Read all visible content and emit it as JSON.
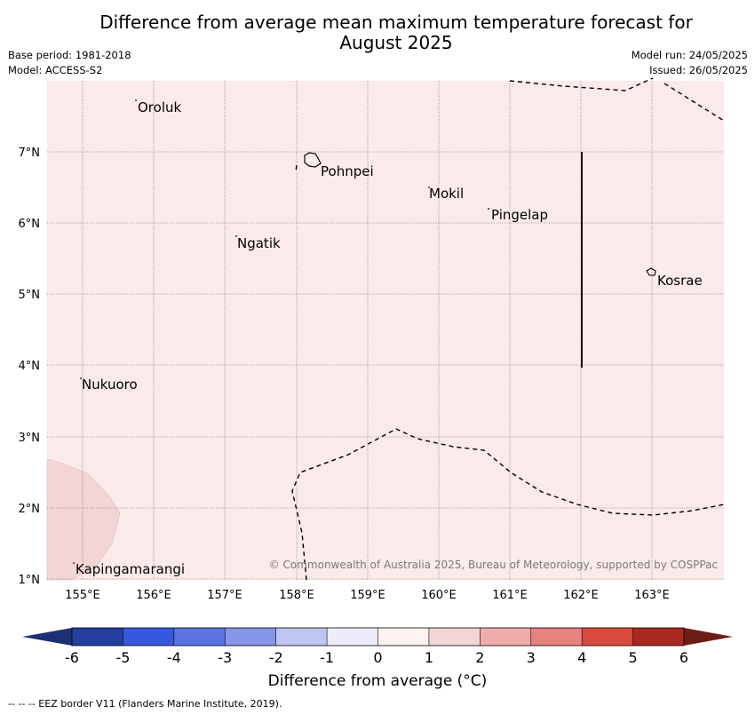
{
  "title_line1": "Difference from average mean maximum temperature forecast for",
  "title_line2": "August 2025",
  "base_period": "Base period: 1981-2018",
  "model": "Model: ACCESS-S2",
  "model_run": "Model run: 24/05/2025",
  "issued": "Issued: 26/05/2025",
  "copyright": "© Commonwealth of Australia 2025, Bureau of Meteorology, supported by COSPPac",
  "map": {
    "lon_labels": [
      "155°E",
      "156°E",
      "157°E",
      "158°E",
      "159°E",
      "160°E",
      "161°E",
      "162°E",
      "163°E"
    ],
    "lat_labels": [
      "7°N",
      "6°N",
      "5°N",
      "4°N",
      "3°N",
      "2°N",
      "1°N"
    ],
    "places": [
      {
        "name": "Oroluk"
      },
      {
        "name": "Pohnpei"
      },
      {
        "name": "Mokil"
      },
      {
        "name": "Pingelap"
      },
      {
        "name": "Ngatik"
      },
      {
        "name": "Kosrae"
      },
      {
        "name": "Nukuoro"
      },
      {
        "name": "Kapingamarangi"
      }
    ],
    "fill_colors": {
      "anomaly_0_1": "#fbeaea",
      "anomaly_1_2": "#f2d5d4"
    }
  },
  "colorbar": {
    "ticks": [
      "-6",
      "-5",
      "-4",
      "-3",
      "-2",
      "-1",
      "0",
      "1",
      "2",
      "3",
      "4",
      "5",
      "6"
    ],
    "colors": [
      "#243f9f",
      "#3658dc",
      "#5b73e3",
      "#8696e9",
      "#c0c6f2",
      "#ececfb",
      "#fff2f0",
      "#f2d5d4",
      "#eeaca9",
      "#e7827c",
      "#d94a3f",
      "#a9281f"
    ],
    "extend_low": "#1f2f73",
    "extend_high": "#6e1d16",
    "label": "Difference from average (°C)"
  },
  "eez_note": "--  --  -- EEZ border V11 (Flanders Marine Institute, 2019)."
}
